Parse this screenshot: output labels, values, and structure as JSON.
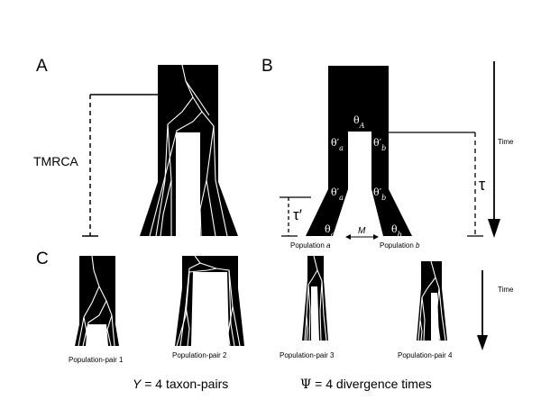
{
  "panels": {
    "a": {
      "label": "A",
      "tmrca_label": "TMRCA"
    },
    "b": {
      "label": "B",
      "theta_ancestral": "θ",
      "theta_ancestral_sub": "A",
      "theta_prime": "θ′",
      "sub_a": "a",
      "sub_b": "b",
      "theta": "θ",
      "tau": "τ",
      "tau_prime": "τ′",
      "migration": "M",
      "time_label": "Time",
      "population_word": "Population",
      "population_a_letter": "a",
      "population_b_letter": "b"
    },
    "c": {
      "label": "C",
      "time_label": "Time",
      "pairs": [
        {
          "label": "Population-pair 1"
        },
        {
          "label": "Population-pair 2"
        },
        {
          "label": "Population-pair 3"
        },
        {
          "label": "Population-pair 4"
        }
      ]
    }
  },
  "footer": {
    "y_symbol": "Y",
    "y_text": " = 4 taxon-pairs",
    "psi_symbol": "Ψ",
    "psi_text": " = 4 divergence times"
  }
}
